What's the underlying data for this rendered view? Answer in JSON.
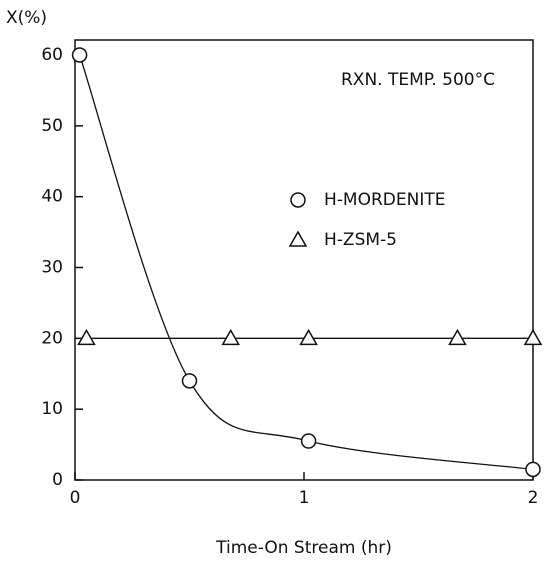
{
  "chart_data": {
    "type": "scatter",
    "ylabel": "X(%)",
    "xlabel": "Time-On Stream (hr)",
    "annotation": "RXN. TEMP. 500°C",
    "xlim": [
      0,
      2
    ],
    "ylim": [
      0,
      60
    ],
    "xticks": [
      0,
      1,
      2
    ],
    "yticks": [
      0,
      10,
      20,
      30,
      40,
      50,
      60
    ],
    "legend": "upper right",
    "series": [
      {
        "name": "H-MORDENITE",
        "marker": "circle",
        "line": "smooth",
        "color": "#111",
        "x": [
          0.02,
          0.5,
          1.02,
          2.0
        ],
        "values": [
          60,
          14,
          5.5,
          1.5
        ]
      },
      {
        "name": "H-ZSM-5",
        "marker": "triangle",
        "line": "straight",
        "color": "#111",
        "x": [
          0.05,
          0.68,
          1.02,
          1.67,
          2.0
        ],
        "values": [
          20,
          20,
          20,
          20,
          20
        ]
      }
    ]
  }
}
